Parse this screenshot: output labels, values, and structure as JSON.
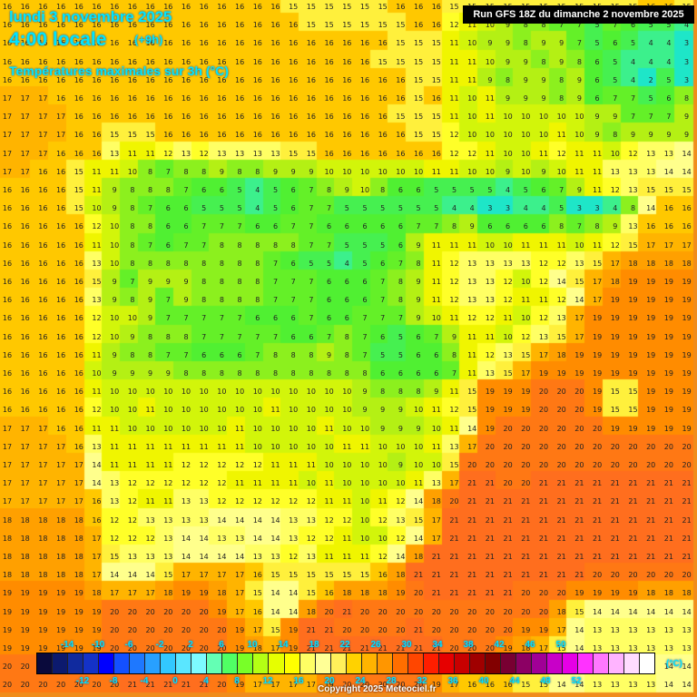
{
  "header": {
    "date": "lundi 3 novembre 2025",
    "time": "4:00 locale",
    "offset": "(+9h)",
    "parameter": "Températures maximales sur 3h (°C)",
    "run": "Run GFS 18Z du dimanche 2 novembre 2025"
  },
  "footer": {
    "copyright": "Copyright 2025 Meteociel.fr",
    "unit": "(°C)"
  },
  "legend": {
    "top_labels": [
      "-14",
      "-10",
      "-6",
      "-2",
      "2",
      "6",
      "10",
      "14",
      "18",
      "22",
      "26",
      "30",
      "34",
      "38",
      "42",
      "46",
      "50"
    ],
    "bottom_labels": [
      "-12",
      "-8",
      "-4",
      "0",
      "4",
      "8",
      "12",
      "16",
      "20",
      "24",
      "28",
      "32",
      "36",
      "40",
      "44",
      "48",
      "52"
    ],
    "colors": [
      "#0a0a3c",
      "#0c1a6e",
      "#102a9e",
      "#1432c8",
      "#0000ff",
      "#1450ff",
      "#1e78ff",
      "#28a0ff",
      "#32c8ff",
      "#5ae6ff",
      "#7dfaff",
      "#64ffb4",
      "#50ff64",
      "#78ff28",
      "#b4ff14",
      "#e6ff00",
      "#ffff00",
      "#ffff64",
      "#ffff96",
      "#fff05a",
      "#ffd200",
      "#ffb400",
      "#ff9600",
      "#ff6e00",
      "#ff4600",
      "#ff1e00",
      "#e60000",
      "#c80000",
      "#a00000",
      "#820000",
      "#780032",
      "#8c0064",
      "#a00096",
      "#c800c8",
      "#e600e6",
      "#ff32ff",
      "#ff78ff",
      "#ffb4ff",
      "#ffdcff",
      "#ffffff"
    ]
  },
  "map": {
    "cols": 39,
    "rows": 38,
    "rows_data": [
      "16 16 16 16 16 16 16 16 16 16 16 16 16 16 16 16 15 15 15 15 15 15 16 16 16 15 15 15 15 15 15 15 15 15 15 15 16 16 15",
      "16 16 16 16 16 16 16 16 16 16 16 16 16 16 16 16 16 15 15 15 15 15 15 16 16 12 11 10 9 8 8 7 7 5 7 6 5 5 4",
      "16 16 16 16 16 16 16 16 16 16 16 16 16 16 16 16 16 16 16 16 16 16 15 15 15 11 10 9 9 8 9 9 7 5 6 5 4 4 3",
      "16 16 16 16 16 16 16 16 16 16 16 16 16 16 16 16 16 16 16 16 16 15 15 15 15 11 11 10 9 9 8 9 8 6 5 4 4 4 3",
      "16 16 16 16 16 16 16 16 16 16 16 16 16 16 16 16 16 16 16 16 16 16 16 15 15 11 11 9 8 9 9 8 9 6 5 4 2 5 3",
      "17 17 17 16 16 16 16 16 16 16 16 16 16 16 16 16 16 16 16 16 16 16 16 15 16 11 10 11 9 9 9 8 9 6 7 7 5 6 8",
      "17 17 17 17 16 16 16 16 16 16 16 16 16 16 16 16 16 16 16 16 16 16 15 15 15 11 10 11 10 10 10 10 10 9 9 7 7 7 9",
      "17 17 17 17 16 16 15 15 15 16 16 16 16 16 16 16 16 16 16 16 16 16 16 15 15 12 10 10 10 10 10 11 10 9 8 9 9 9 9",
      "17 17 17 16 16 16 13 11 11 12 13 12 13 13 13 13 15 15 16 16 16 16 16 16 16 12 12 11 10 10 11 12 11 11 10 12 13 13 14",
      "17 17 16 16 15 11 11 10 8 7 8 8 9 8 8 9 9 9 10 10 10 10 10 10 11 11 10 10 9 10 9 10 11 11 13 13 13 14 14",
      "16 16 16 16 15 11 9 8 8 8 7 6 6 5 4 5 6 7 8 9 10 8 6 6 5 5 5 5 4 5 6 7 9 11 12 13 15 15 15",
      "16 16 16 16 15 10 9 8 7 6 6 5 5 5 4 5 6 7 7 5 5 5 5 5 5 4 4 3 3 4 4 5 3 3 4 8 14 16 16",
      "16 16 16 16 16 12 10 8 8 6 6 7 7 7 6 6 7 7 6 6 6 6 6 7 7 8 9 6 6 6 6 8 7 8 9 13 16 16 16",
      "16 16 16 16 16 11 10 8 7 6 7 7 8 8 8 8 8 7 7 5 5 5 6 9 11 11 11 10 10 11 11 11 10 11 12 15 17 17 17",
      "16 16 16 16 16 13 10 8 8 8 8 8 8 8 8 7 6 5 5 4 5 6 7 8 11 12 13 13 13 13 12 12 13 15 17 18 18 18 18",
      "16 16 16 16 16 15 9 7 9 9 9 8 8 8 8 7 7 7 6 6 6 7 8 9 11 12 13 13 12 10 12 14 15 17 18 19 19 19 19",
      "16 16 16 16 16 13 9 8 9 7 9 8 8 8 8 7 7 7 6 6 6 7 8 9 11 12 13 13 12 11 11 12 14 17 19 19 19 19 19",
      "16 16 16 16 16 12 10 10 9 7 7 7 7 7 6 6 6 7 6 6 7 7 7 9 10 11 12 12 11 10 12 13 17 19 19 19 19 19 19",
      "16 16 16 16 16 12 10 9 8 8 8 7 7 7 7 7 6 6 7 8 7 6 5 6 7 9 11 11 10 12 13 15 17 19 19 19 19 19 19",
      "16 16 16 16 16 11 9 8 8 7 7 6 6 6 7 8 8 8 9 8 7 5 5 6 6 8 11 12 13 15 17 18 19 19 19 19 19 19 19",
      "16 16 16 16 16 10 9 9 9 9 8 8 8 8 8 8 8 8 8 8 8 6 6 6 6 7 11 13 15 17 19 19 19 19 19 19 19 19 19",
      "16 16 16 16 16 11 10 10 10 10 10 10 10 10 10 10 10 10 10 10 9 8 8 8 9 11 15 19 19 19 20 20 20 19 15 15 19 19 19",
      "16 16 16 16 16 12 10 10 11 10 10 10 10 10 10 11 10 10 10 10 9 9 9 10 11 12 15 19 19 19 20 20 20 19 15 15 19 19 19",
      "17 17 17 16 16 11 11 10 10 10 10 10 10 11 10 10 10 10 11 10 10 9 9 9 10 11 14 19 20 20 20 20 20 20 19 19 19 19 19",
      "17 17 17 17 16 13 11 11 11 11 11 11 11 11 10 10 10 10 10 11 11 10 10 10 11 13 17 20 20 20 20 20 20 20 20 20 20 20 20",
      "17 17 17 17 17 14 11 11 11 11 12 12 12 12 12 11 11 11 10 10 10 10 9 10 10 15 20 20 20 20 20 20 20 20 20 20 20 20 20",
      "17 17 17 17 17 14 13 12 12 12 12 12 12 11 11 11 11 10 11 10 10 10 10 11 13 17 21 21 20 20 21 21 21 21 21 21 21 21 21",
      "17 17 17 17 17 16 13 12 11 11 13 13 12 12 12 12 12 12 11 11 10 11 12 14 18 20 21 21 21 21 21 21 21 21 21 21 21 21 21",
      "18 18 18 18 18 16 12 12 13 13 13 13 14 14 14 14 13 13 12 12 10 12 13 15 17 21 21 21 21 21 21 21 21 21 21 21 21 21 21",
      "18 18 18 18 18 17 12 12 12 13 14 14 13 13 14 14 13 12 12 11 10 10 12 14 17 21 21 21 21 21 21 21 21 21 21 21 21 21 21",
      "18 18 18 18 18 17 15 13 13 13 14 14 14 14 13 13 12 13 11 11 11 12 14 18 21 21 21 21 21 21 21 21 21 21 21 21 21 21 21",
      "18 18 18 18 18 17 14 14 14 15 17 17 17 17 16 15 15 15 15 15 15 16 18 21 21 21 21 21 21 21 21 21 21 20 20 20 20 20 20",
      "19 19 19 19 19 18 17 17 17 18 19 19 18 17 15 14 14 15 16 18 18 18 19 20 21 21 21 21 21 20 20 20 19 19 19 19 18 18 18",
      "19 19 19 19 19 19 20 20 20 20 20 20 19 17 16 14 14 18 20 21 20 20 20 20 20 20 20 20 20 20 20 18 15 14 14 14 14 14 14",
      "19 19 19 19 19 19 20 20 20 20 20 20 20 19 17 15 19 21 21 20 20 20 20 21 20 20 20 20 20 19 19 17 14 13 13 13 13 13 13",
      "19 19 19 19 19 19 20 20 20 20 20 20 20 19 18 17 19 21 21 21 21 21 21 21 21 20 20 20 19 18 17 15 14 13 13 13 13 13 13",
      "20 20 20 20 20 20 20 20 21 21 21 20 20 19 19 17 18 19 20 21 21 20 20 20 20 20 20 19 17 16 14 14 13 14 14 14 14 14 14",
      "20 20 20 20 20 20 20 21 21 21 21 21 20 19 17 17 17 17 19 20 20 20 20 20 19 17 16 16 16 15 15 14 14 13 13 13 13 14 14"
    ]
  }
}
